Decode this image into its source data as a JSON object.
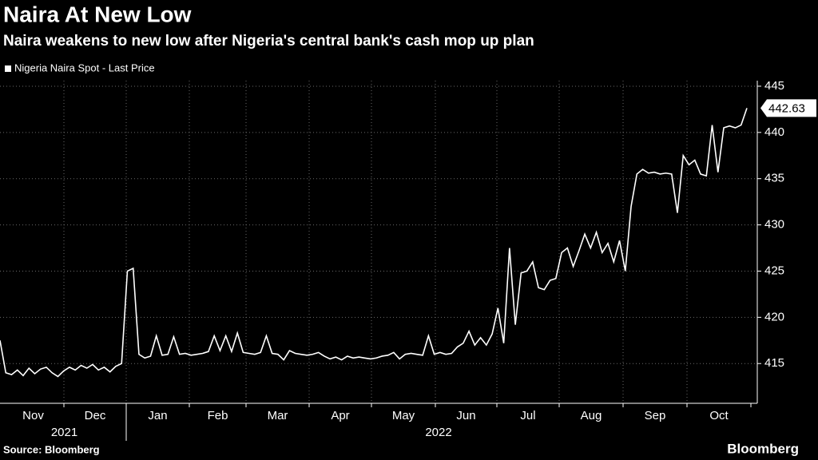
{
  "chart_data": {
    "type": "line",
    "title": "Naira At New Low",
    "subtitle": "Naira weakens to new low after Nigeria's central bank's cash mop up plan",
    "months": [
      "Nov",
      "Dec",
      "Jan",
      "Feb",
      "Mar",
      "Apr",
      "May",
      "Jun",
      "Jul",
      "Aug",
      "Sep",
      "Oct"
    ],
    "years": [
      "2021",
      "2022"
    ],
    "series": [
      {
        "name": "Nigeria Naira Spot - Last Price",
        "color": "#ffffff",
        "values": [
          417.5,
          414,
          413.8,
          414.3,
          413.7,
          414.5,
          413.9,
          414.4,
          414.6,
          414,
          413.6,
          414.2,
          414.6,
          414.3,
          414.8,
          414.5,
          414.9,
          414.3,
          414.6,
          414.1,
          414.7,
          415,
          425,
          425.3,
          416,
          415.6,
          415.8,
          418,
          415.9,
          416,
          417.9,
          416,
          416.1,
          415.9,
          416,
          416.1,
          416.3,
          418,
          416.4,
          418,
          416.3,
          418.3,
          416.2,
          416.1,
          416,
          416.2,
          418,
          416.1,
          416,
          415.4,
          416.4,
          416.1,
          416,
          415.9,
          416,
          416.2,
          415.8,
          415.5,
          415.7,
          415.4,
          415.8,
          415.6,
          415.7,
          415.6,
          415.5,
          415.6,
          415.8,
          415.9,
          416.2,
          415.5,
          416,
          416.1,
          416,
          415.9,
          418,
          416,
          416.2,
          416,
          416.1,
          416.8,
          417.2,
          418.5,
          417,
          417.8,
          417,
          418.2,
          421,
          417.2,
          427.5,
          419.2,
          424.8,
          425,
          426,
          423.2,
          423,
          424,
          424.2,
          427,
          427.5,
          425.5,
          427.2,
          429,
          427.5,
          429.2,
          427,
          428,
          426,
          428.3,
          425,
          432,
          435.5,
          436,
          435.6,
          435.7,
          435.5,
          435.6,
          435.5,
          431.3,
          437.5,
          436.5,
          437,
          435.5,
          435.3,
          440.8,
          435.7,
          440.5,
          440.7,
          440.5,
          440.8,
          442.63
        ]
      }
    ],
    "ylim": [
      410.7,
      445.6
    ],
    "yticks": [
      415,
      420,
      425,
      430,
      435,
      440,
      445
    ],
    "grid": true,
    "source": "Source: Bloomberg",
    "brand": "Bloomberg"
  }
}
